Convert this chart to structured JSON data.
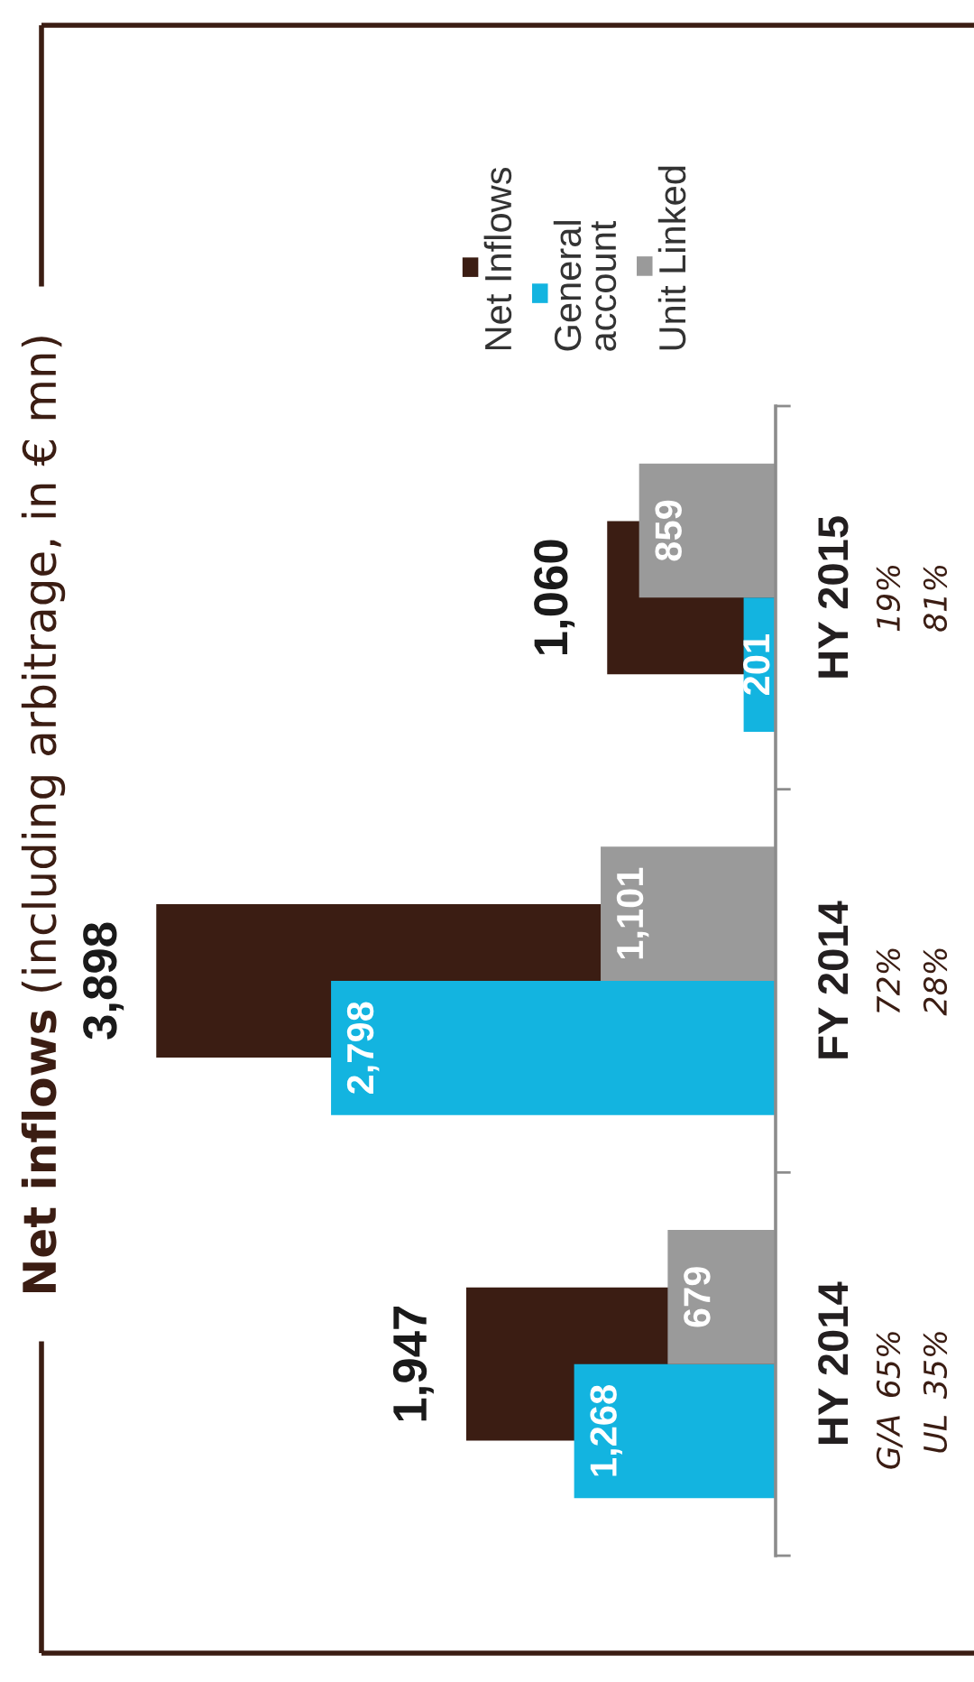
{
  "chart_data": {
    "type": "bar",
    "orientation": "horizontal",
    "title": "Net inflows",
    "subtitle": "(including arbitrage, in € mn)",
    "categories": [
      "HY 2015",
      "FY 2014",
      "HY 2014"
    ],
    "series": [
      {
        "name": "Net Inflows",
        "color": "#3b1d13",
        "values": [
          1060,
          3898,
          1947
        ],
        "value_labels": [
          "1,060",
          "3,898",
          "1,947"
        ]
      },
      {
        "name": "General account",
        "color": "#13b4e0",
        "values": [
          201,
          2798,
          1268
        ],
        "value_labels": [
          "201",
          "2,798",
          "1,268"
        ]
      },
      {
        "name": "Unit Linked",
        "color": "#9a9a9a",
        "values": [
          859,
          1101,
          679
        ],
        "value_labels": [
          "859",
          "1,101",
          "679"
        ]
      }
    ],
    "legend": "top",
    "annotations": [
      "G/A",
      "19%",
      "72%",
      "65%",
      "UL",
      "81%",
      "28%",
      "35%"
    ]
  }
}
